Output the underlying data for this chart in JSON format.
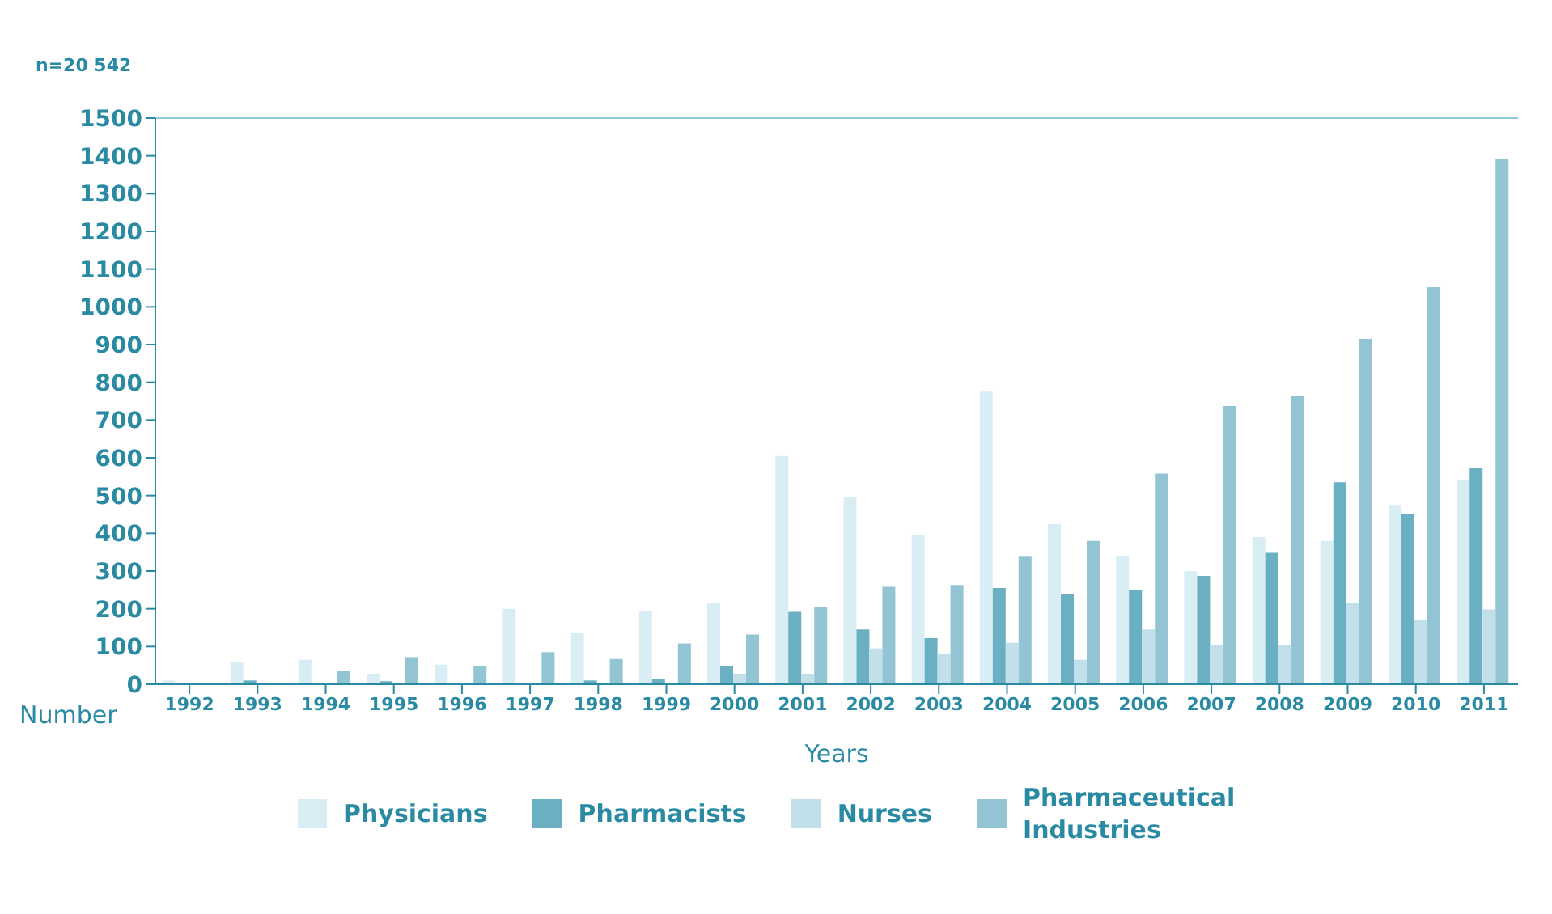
{
  "chart_data": {
    "type": "bar",
    "xlabel": "Years",
    "ylabel": "Number",
    "annotations": [
      "n=20 542"
    ],
    "categories": [
      "1992",
      "1993",
      "1994",
      "1995",
      "1996",
      "1997",
      "1998",
      "1999",
      "2000",
      "2001",
      "2002",
      "2003",
      "2004",
      "2005",
      "2006",
      "2007",
      "2008",
      "2009",
      "2010",
      "2011"
    ],
    "series": [
      {
        "name": "Physicians",
        "color": "#d9eef4",
        "values": [
          10,
          60,
          65,
          28,
          52,
          200,
          135,
          195,
          215,
          605,
          495,
          395,
          775,
          425,
          340,
          300,
          390,
          380,
          475,
          540
        ]
      },
      {
        "name": "Pharmacists",
        "color": "#6aafc2",
        "values": [
          0,
          10,
          0,
          8,
          0,
          0,
          10,
          15,
          48,
          192,
          145,
          122,
          255,
          240,
          250,
          287,
          348,
          535,
          450,
          572
        ]
      },
      {
        "name": "Nurses",
        "color": "#c2e0ea",
        "values": [
          0,
          0,
          0,
          0,
          0,
          0,
          0,
          0,
          28,
          28,
          95,
          80,
          110,
          65,
          145,
          103,
          103,
          215,
          170,
          198
        ]
      },
      {
        "name": "Pharmaceutical Industries",
        "color": "#92c4d3",
        "values": [
          0,
          0,
          35,
          72,
          48,
          85,
          67,
          108,
          132,
          205,
          258,
          263,
          338,
          380,
          558,
          737,
          765,
          915,
          1052,
          1392
        ]
      }
    ],
    "ylim": [
      0,
      1500
    ],
    "yticks": [
      0,
      100,
      200,
      300,
      400,
      500,
      600,
      700,
      800,
      900,
      1000,
      1100,
      1200,
      1300,
      1400,
      1500
    ],
    "legend": "bottom"
  }
}
